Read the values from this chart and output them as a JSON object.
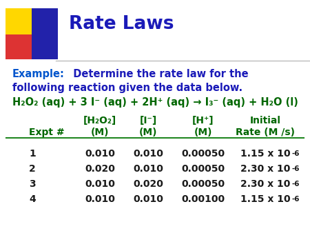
{
  "title": "Rate Laws",
  "title_color": "#1a1ab8",
  "bg_color": "#ffffff",
  "example_label": "Example:",
  "example_label_color": "#0000cc",
  "example_text_color": "#1a1ab8",
  "reaction_color": "#006600",
  "header_color": "#006600",
  "data_color": "#1a1a1a",
  "table_headers1": [
    "[H₂O₂]",
    "[I⁻]",
    "[H⁺]",
    "Initial"
  ],
  "table_headers2": [
    "Expt #",
    "(M)",
    "(M)",
    "(M)",
    "Rate (M /s)"
  ],
  "rows": [
    [
      "1",
      "0.010",
      "0.010",
      "0.00050",
      "1.15 x 10"
    ],
    [
      "2",
      "0.020",
      "0.010",
      "0.00050",
      "2.30 x 10"
    ],
    [
      "3",
      "0.010",
      "0.020",
      "0.00050",
      "2.30 x 10"
    ],
    [
      "4",
      "0.010",
      "0.010",
      "0.00100",
      "1.15 x 10"
    ]
  ],
  "rate_exponents": [
    "-6",
    "-6",
    "-6",
    "-6"
  ],
  "deco_yellow": "#FFD700",
  "deco_red": "#dd3333",
  "deco_blue": "#2222aa"
}
